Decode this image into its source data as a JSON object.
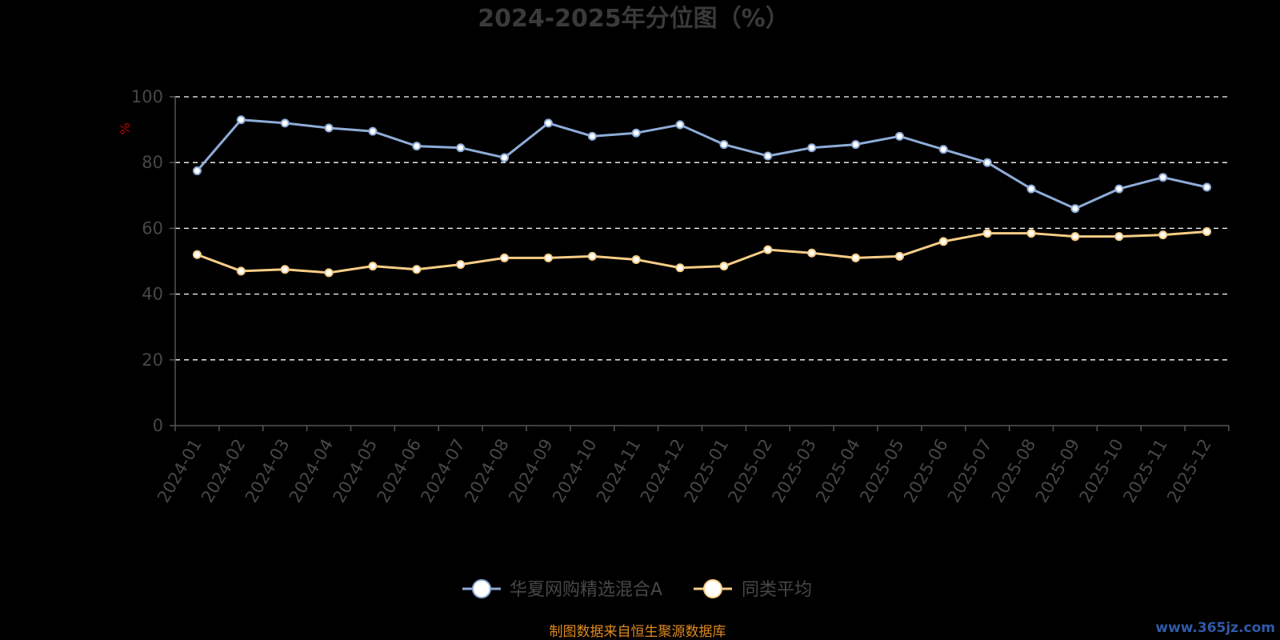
{
  "chart_data": {
    "type": "line",
    "title": "2024-2025年分位图（%）",
    "ylabel": "%",
    "xlabel": "",
    "ylim": [
      0,
      100
    ],
    "yticks": [
      0,
      20,
      40,
      60,
      80,
      100
    ],
    "grid": "horizontal dashed",
    "legend_position": "bottom-center",
    "categories": [
      "2024-01",
      "2024-02",
      "2024-03",
      "2024-04",
      "2024-05",
      "2024-06",
      "2024-07",
      "2024-08",
      "2024-09",
      "2024-10",
      "2024-11",
      "2024-12",
      "2025-01",
      "2025-02",
      "2025-03",
      "2025-04",
      "2025-05",
      "2025-06",
      "2025-07",
      "2025-08",
      "2025-09",
      "2025-10",
      "2025-11",
      "2025-12"
    ],
    "series": [
      {
        "name": "华夏网购精选混合A",
        "color": "#8eacd8",
        "values": [
          77.5,
          93,
          92,
          90.5,
          89.5,
          85,
          84.5,
          81.5,
          92,
          88,
          89,
          91.5,
          85.5,
          82,
          84.5,
          85.5,
          88,
          84,
          80,
          72,
          66,
          72,
          75.5,
          72.5
        ]
      },
      {
        "name": "同类平均",
        "color": "#f7cd86",
        "values": [
          52,
          47,
          47.5,
          46.5,
          48.5,
          47.5,
          49,
          51,
          51,
          51.5,
          50.5,
          48,
          48.5,
          53.5,
          52.5,
          51,
          51.5,
          56,
          58.5,
          58.5,
          57.5,
          57.5,
          58,
          59
        ]
      }
    ]
  },
  "source_note": "制图数据来自恒生聚源数据库",
  "watermark": "www.365jz.com",
  "colors": {
    "background": "#000000",
    "axis": "#555555",
    "grid": "#ffffff",
    "text": "#474747",
    "unit_label": "#c00000",
    "source_note": "#e08a1e",
    "watermark": "#2f5aa8"
  }
}
